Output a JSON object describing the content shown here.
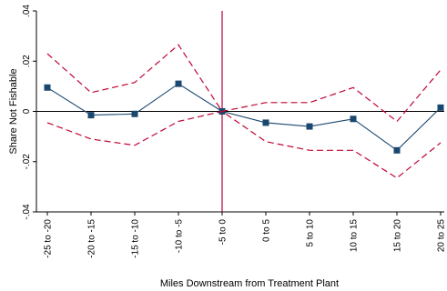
{
  "chart_data": {
    "type": "line",
    "title": "",
    "xlabel": "Miles Downstream from Treatment Plant",
    "ylabel": "Share Not Fishable",
    "categories": [
      "-25 to -20",
      "-20 to -15",
      "-15 to -10",
      "-10 to -5",
      "-5 to 0",
      "0 to 5",
      "5 to 10",
      "10 to 15",
      "15 to 20",
      "20 to 25"
    ],
    "ylim": [
      -0.04,
      0.04
    ],
    "yticks": [
      -0.04,
      -0.02,
      0,
      0.02,
      0.04
    ],
    "ytick_labels": [
      "-.04",
      "-.02",
      "0",
      ".02",
      ".04"
    ],
    "grid": false,
    "legend": "none",
    "reference_lines": {
      "horizontal_y": 0,
      "vertical_at_category": "-5 to 0"
    },
    "series": [
      {
        "role": "estimate",
        "values": [
          0.0095,
          -0.0015,
          -0.001,
          0.011,
          0.0,
          -0.0045,
          -0.006,
          -0.003,
          -0.0155,
          0.0015
        ],
        "color": "#1a476f",
        "marker": "square"
      },
      {
        "role": "upper_ci",
        "values": [
          0.023,
          0.0075,
          0.0115,
          0.0265,
          0.0,
          0.0035,
          0.0035,
          0.0095,
          -0.004,
          0.0165
        ],
        "color": "#c10534",
        "dash": true
      },
      {
        "role": "lower_ci",
        "values": [
          -0.0045,
          -0.011,
          -0.0135,
          -0.004,
          0.0,
          -0.012,
          -0.0155,
          -0.0155,
          -0.0265,
          -0.0125
        ],
        "color": "#c10534",
        "dash": true
      }
    ]
  }
}
